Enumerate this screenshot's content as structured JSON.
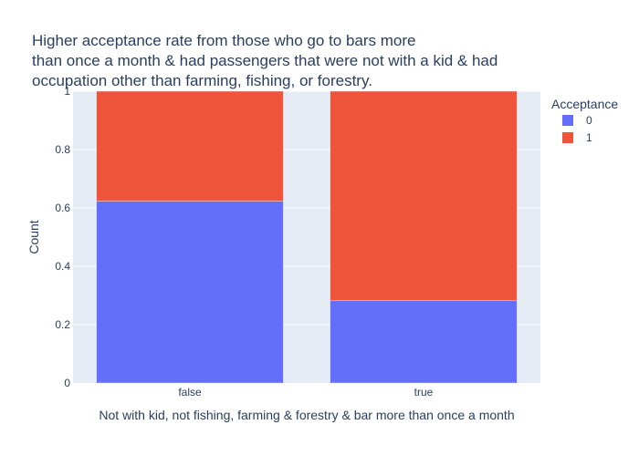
{
  "chart_data": {
    "type": "bar",
    "barmode": "stack",
    "title_lines": [
      "Higher acceptance rate from those who go to bars more",
      "than once a month & had passengers that were not with a kid & had",
      "occupation other than farming, fishing, or forestry."
    ],
    "xlabel": "Not with kid, not fishing, farming & forestry & bar more than once a month",
    "ylabel": "Count",
    "categories": [
      "false",
      "true"
    ],
    "ylim": [
      0,
      1
    ],
    "yticks": [
      0,
      0.2,
      0.4,
      0.6,
      0.8,
      1
    ],
    "ytick_labels": [
      "0",
      "0.2",
      "0.4",
      "0.6",
      "0.8",
      "1"
    ],
    "series": [
      {
        "name": "0",
        "values": [
          0.623,
          0.282
        ],
        "color": "#636efa"
      },
      {
        "name": "1",
        "values": [
          0.377,
          0.718
        ],
        "color": "#ef553b"
      }
    ],
    "legend_title": "Acceptance",
    "legend_position": "top-right",
    "grid": true,
    "plot_background": "#e5ecf6"
  }
}
